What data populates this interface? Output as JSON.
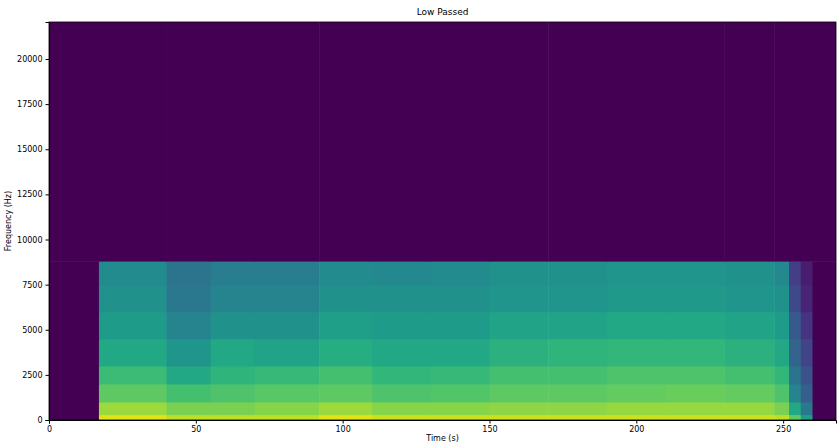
{
  "chart_data": {
    "type": "heatmap",
    "title": "Low Passed",
    "x_label": "Time (s)",
    "y_label": "Frequency (Hz)",
    "color": "viridis",
    "xlim": [
      0,
      268
    ],
    "ylim": [
      0,
      22050
    ],
    "xticks": [
      0,
      50,
      100,
      150,
      200,
      250
    ],
    "yticks": [
      0,
      2500,
      5000,
      7500,
      10000,
      12500,
      15000,
      17500,
      20000
    ],
    "x_edges": [
      0,
      17,
      40,
      55,
      70,
      92,
      110,
      130,
      150,
      170,
      190,
      210,
      230,
      247,
      252,
      256,
      260,
      268
    ],
    "y_edges": [
      0,
      300,
      1000,
      2000,
      3000,
      4500,
      6000,
      7500,
      8800,
      22050
    ],
    "cell_range": [
      0,
      1
    ],
    "cells": [
      [
        0,
        0.95,
        0.9,
        0.9,
        0.9,
        0.95,
        0.92,
        0.92,
        0.92,
        0.92,
        0.92,
        0.92,
        0.92,
        0.9,
        0.75,
        0.55,
        0
      ],
      [
        0,
        0.85,
        0.8,
        0.8,
        0.82,
        0.85,
        0.82,
        0.82,
        0.83,
        0.83,
        0.84,
        0.84,
        0.84,
        0.8,
        0.6,
        0.4,
        0
      ],
      [
        0,
        0.75,
        0.7,
        0.72,
        0.74,
        0.75,
        0.72,
        0.73,
        0.75,
        0.75,
        0.76,
        0.77,
        0.76,
        0.72,
        0.45,
        0.3,
        0
      ],
      [
        0,
        0.68,
        0.6,
        0.65,
        0.67,
        0.7,
        0.66,
        0.67,
        0.7,
        0.7,
        0.72,
        0.72,
        0.7,
        0.66,
        0.38,
        0.25,
        0
      ],
      [
        0,
        0.6,
        0.52,
        0.6,
        0.58,
        0.62,
        0.6,
        0.6,
        0.64,
        0.65,
        0.66,
        0.66,
        0.64,
        0.6,
        0.32,
        0.2,
        0
      ],
      [
        0,
        0.55,
        0.45,
        0.5,
        0.5,
        0.56,
        0.55,
        0.55,
        0.58,
        0.58,
        0.6,
        0.6,
        0.58,
        0.55,
        0.28,
        0.15,
        0
      ],
      [
        0,
        0.5,
        0.4,
        0.45,
        0.45,
        0.5,
        0.5,
        0.5,
        0.52,
        0.52,
        0.54,
        0.54,
        0.52,
        0.5,
        0.22,
        0.1,
        0
      ],
      [
        0,
        0.48,
        0.38,
        0.42,
        0.42,
        0.48,
        0.47,
        0.48,
        0.5,
        0.5,
        0.52,
        0.52,
        0.5,
        0.47,
        0.18,
        0.08,
        0
      ],
      [
        0,
        0,
        0,
        0,
        0,
        0,
        0,
        0,
        0,
        0,
        0,
        0,
        0,
        0,
        0,
        0,
        0
      ]
    ]
  }
}
